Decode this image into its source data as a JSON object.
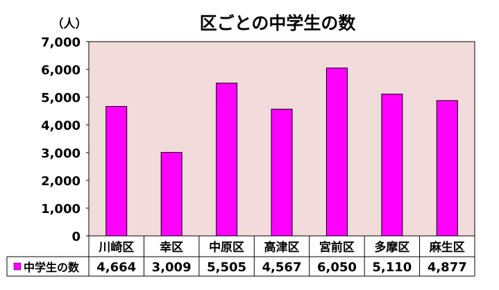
{
  "chart_data": {
    "type": "bar",
    "title": "区ごとの中学生の数",
    "ylabel": "（人）",
    "xlabel": "",
    "ylim": [
      0,
      7000
    ],
    "yticks": [
      "0",
      "1,000",
      "2,000",
      "3,000",
      "4,000",
      "5,000",
      "6,000",
      "7,000"
    ],
    "grid": false,
    "legend": "bottom-left data table",
    "categories": [
      "川崎区",
      "幸区",
      "中原区",
      "高津区",
      "宮前区",
      "多摩区",
      "麻生区"
    ],
    "series": [
      {
        "name": "中学生の数",
        "values": [
          4664,
          3009,
          5505,
          4567,
          6050,
          5110,
          4877
        ],
        "value_labels": [
          "4,664",
          "3,009",
          "5,505",
          "4,567",
          "6,050",
          "5,110",
          "4,877"
        ]
      }
    ],
    "colors": {
      "bar": "#ff00ff",
      "plot_background": "#f2dcdb",
      "axis": "#000000"
    }
  }
}
